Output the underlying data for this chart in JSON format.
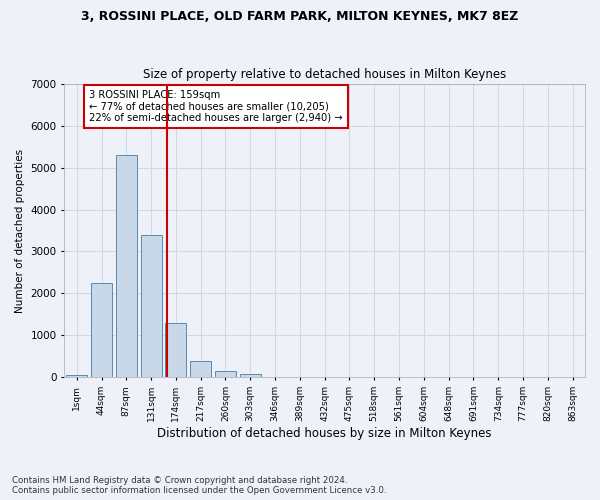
{
  "title1": "3, ROSSINI PLACE, OLD FARM PARK, MILTON KEYNES, MK7 8EZ",
  "title2": "Size of property relative to detached houses in Milton Keynes",
  "xlabel": "Distribution of detached houses by size in Milton Keynes",
  "ylabel": "Number of detached properties",
  "footnote": "Contains HM Land Registry data © Crown copyright and database right 2024.\nContains public sector information licensed under the Open Government Licence v3.0.",
  "bin_labels": [
    "1sqm",
    "44sqm",
    "87sqm",
    "131sqm",
    "174sqm",
    "217sqm",
    "260sqm",
    "303sqm",
    "346sqm",
    "389sqm",
    "432sqm",
    "475sqm",
    "518sqm",
    "561sqm",
    "604sqm",
    "648sqm",
    "691sqm",
    "734sqm",
    "777sqm",
    "820sqm",
    "863sqm"
  ],
  "bar_values": [
    50,
    2250,
    5300,
    3400,
    1300,
    400,
    150,
    70,
    10,
    0,
    0,
    0,
    0,
    0,
    0,
    0,
    0,
    0,
    0,
    0,
    0
  ],
  "bar_color": "#c8d8e8",
  "bar_edge_color": "#5a8ab0",
  "grid_color": "#d0d8e8",
  "background_color": "#eef2f8",
  "vline_color": "#cc0000",
  "annotation_text": "3 ROSSINI PLACE: 159sqm\n← 77% of detached houses are smaller (10,205)\n22% of semi-detached houses are larger (2,940) →",
  "annotation_box_color": "#ffffff",
  "annotation_border_color": "#cc0000",
  "ylim": [
    0,
    7000
  ],
  "yticks": [
    0,
    1000,
    2000,
    3000,
    4000,
    5000,
    6000,
    7000
  ],
  "vline_x": 3.65
}
